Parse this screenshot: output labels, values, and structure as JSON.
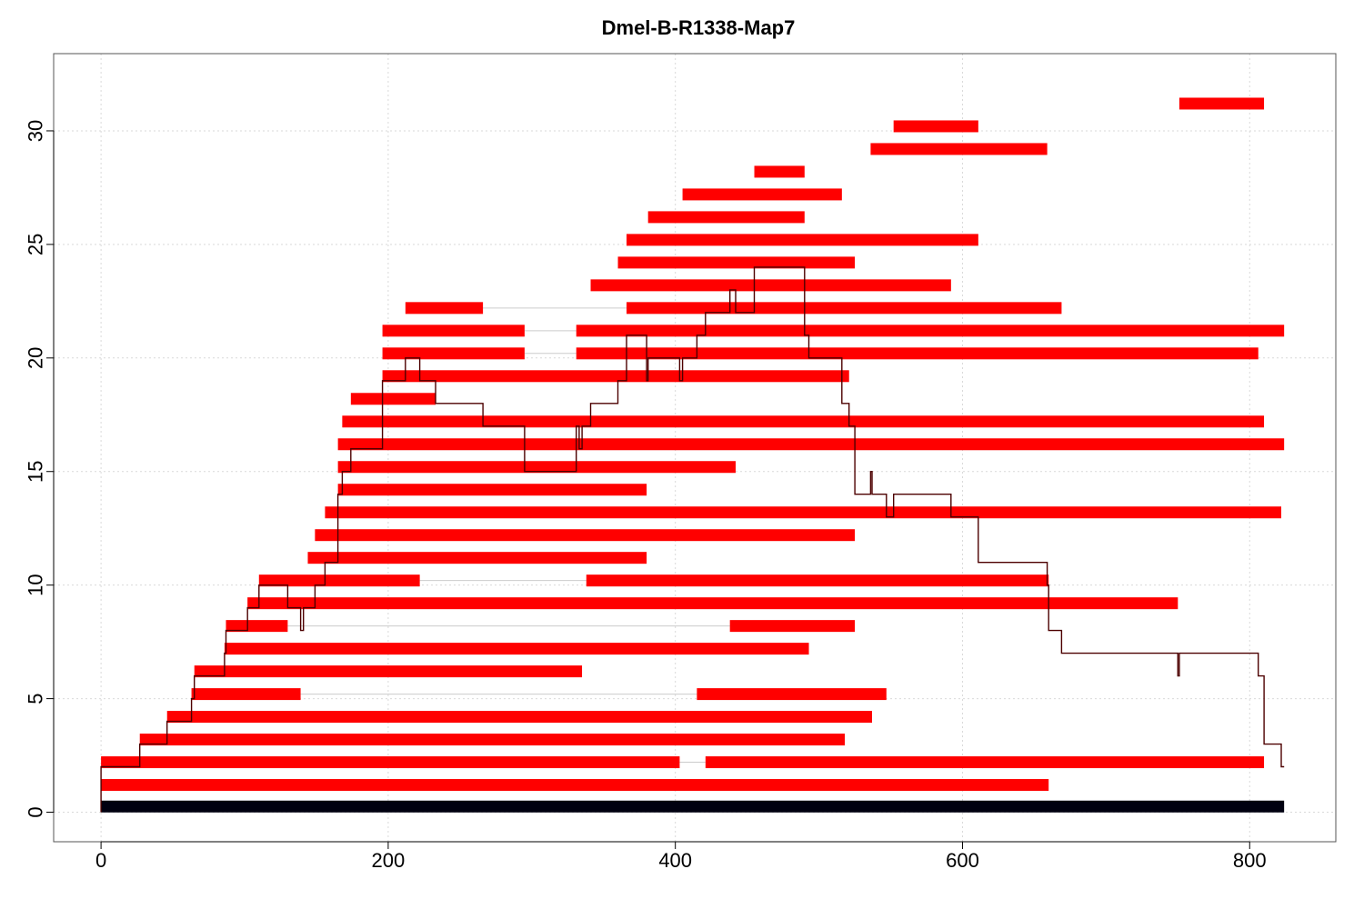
{
  "chart_data": {
    "type": "bar",
    "title": "Dmel-B-R1338-Map7",
    "xlabel": "",
    "ylabel": "",
    "xlim": [
      -33,
      860
    ],
    "ylim": [
      -1.3,
      33.4
    ],
    "x_ticks": [
      0,
      200,
      400,
      600,
      800
    ],
    "y_ticks": [
      0,
      5,
      10,
      15,
      20,
      25,
      30
    ],
    "grid": true,
    "colors": {
      "segment": "#ff0000",
      "reference": "#000010",
      "coverage": "#4d0000",
      "connector": "#cccccc",
      "grid": "#d9d9d9"
    },
    "reference": {
      "y": 0.25,
      "start": 0,
      "end": 824
    },
    "rows": [
      {
        "y": 1.2,
        "segments": [
          [
            0,
            660
          ]
        ]
      },
      {
        "y": 2.2,
        "segments": [
          [
            0,
            403
          ],
          [
            421,
            810
          ]
        ]
      },
      {
        "y": 3.2,
        "segments": [
          [
            27,
            518
          ]
        ]
      },
      {
        "y": 4.2,
        "segments": [
          [
            46,
            537
          ]
        ]
      },
      {
        "y": 5.2,
        "segments": [
          [
            63,
            139
          ],
          [
            415,
            547
          ]
        ]
      },
      {
        "y": 6.2,
        "segments": [
          [
            65,
            335
          ]
        ]
      },
      {
        "y": 7.2,
        "segments": [
          [
            86,
            493
          ]
        ]
      },
      {
        "y": 8.2,
        "segments": [
          [
            87,
            130
          ],
          [
            438,
            525
          ]
        ]
      },
      {
        "y": 9.2,
        "segments": [
          [
            102,
            750
          ]
        ]
      },
      {
        "y": 10.2,
        "segments": [
          [
            110,
            222
          ],
          [
            338,
            660
          ]
        ]
      },
      {
        "y": 11.2,
        "segments": [
          [
            144,
            380
          ]
        ]
      },
      {
        "y": 12.2,
        "segments": [
          [
            149,
            525
          ]
        ]
      },
      {
        "y": 13.2,
        "segments": [
          [
            156,
            822
          ]
        ]
      },
      {
        "y": 14.2,
        "segments": [
          [
            165,
            380
          ]
        ]
      },
      {
        "y": 15.2,
        "segments": [
          [
            165,
            442
          ]
        ]
      },
      {
        "y": 16.2,
        "segments": [
          [
            165,
            824
          ]
        ]
      },
      {
        "y": 17.2,
        "segments": [
          [
            168,
            810
          ]
        ]
      },
      {
        "y": 18.2,
        "segments": [
          [
            174,
            233
          ]
        ]
      },
      {
        "y": 19.2,
        "segments": [
          [
            196,
            521
          ]
        ]
      },
      {
        "y": 20.2,
        "segments": [
          [
            196,
            295
          ],
          [
            331,
            806
          ]
        ]
      },
      {
        "y": 21.2,
        "segments": [
          [
            196,
            295
          ],
          [
            331,
            824
          ]
        ]
      },
      {
        "y": 22.2,
        "segments": [
          [
            212,
            266
          ],
          [
            366,
            669
          ]
        ]
      },
      {
        "y": 23.2,
        "segments": [
          [
            341,
            592
          ]
        ]
      },
      {
        "y": 24.2,
        "segments": [
          [
            360,
            525
          ]
        ]
      },
      {
        "y": 25.2,
        "segments": [
          [
            366,
            611
          ]
        ]
      },
      {
        "y": 26.2,
        "segments": [
          [
            381,
            490
          ]
        ]
      },
      {
        "y": 27.2,
        "segments": [
          [
            405,
            516
          ]
        ]
      },
      {
        "y": 28.2,
        "segments": [
          [
            455,
            490
          ]
        ]
      },
      {
        "y": 29.2,
        "segments": [
          [
            536,
            659
          ]
        ]
      },
      {
        "y": 30.2,
        "segments": [
          [
            552,
            611
          ]
        ]
      },
      {
        "y": 31.2,
        "segments": [
          [
            751,
            810
          ]
        ]
      }
    ],
    "coverage": [
      [
        0,
        0
      ],
      [
        0,
        2
      ],
      [
        27,
        2
      ],
      [
        27,
        3
      ],
      [
        46,
        3
      ],
      [
        46,
        4
      ],
      [
        63,
        4
      ],
      [
        63,
        5
      ],
      [
        65,
        5
      ],
      [
        65,
        6
      ],
      [
        86,
        6
      ],
      [
        86,
        7
      ],
      [
        87,
        7
      ],
      [
        87,
        8
      ],
      [
        102,
        8
      ],
      [
        102,
        9
      ],
      [
        110,
        9
      ],
      [
        110,
        10
      ],
      [
        130,
        10
      ],
      [
        130,
        9
      ],
      [
        139,
        9
      ],
      [
        139,
        8
      ],
      [
        141,
        8
      ],
      [
        141,
        9
      ],
      [
        149,
        9
      ],
      [
        149,
        10
      ],
      [
        156,
        10
      ],
      [
        156,
        11
      ],
      [
        165,
        11
      ],
      [
        165,
        14
      ],
      [
        168,
        14
      ],
      [
        168,
        15
      ],
      [
        174,
        15
      ],
      [
        174,
        16
      ],
      [
        196,
        16
      ],
      [
        196,
        19
      ],
      [
        212,
        19
      ],
      [
        212,
        20
      ],
      [
        222,
        20
      ],
      [
        222,
        19
      ],
      [
        233,
        19
      ],
      [
        233,
        18
      ],
      [
        266,
        18
      ],
      [
        266,
        17
      ],
      [
        295,
        17
      ],
      [
        295,
        15
      ],
      [
        331,
        15
      ],
      [
        331,
        17
      ],
      [
        333,
        17
      ],
      [
        333,
        16
      ],
      [
        335,
        16
      ],
      [
        335,
        17
      ],
      [
        341,
        17
      ],
      [
        341,
        18
      ],
      [
        360,
        18
      ],
      [
        360,
        19
      ],
      [
        366,
        19
      ],
      [
        366,
        21
      ],
      [
        380,
        21
      ],
      [
        380,
        19
      ],
      [
        381,
        19
      ],
      [
        381,
        20
      ],
      [
        403,
        20
      ],
      [
        403,
        19
      ],
      [
        405,
        19
      ],
      [
        405,
        20
      ],
      [
        415,
        20
      ],
      [
        415,
        21
      ],
      [
        421,
        21
      ],
      [
        421,
        22
      ],
      [
        438,
        22
      ],
      [
        438,
        23
      ],
      [
        442,
        23
      ],
      [
        442,
        22
      ],
      [
        455,
        22
      ],
      [
        455,
        24
      ],
      [
        490,
        24
      ],
      [
        490,
        21
      ],
      [
        493,
        21
      ],
      [
        493,
        20
      ],
      [
        516,
        20
      ],
      [
        516,
        18
      ],
      [
        521,
        18
      ],
      [
        521,
        17
      ],
      [
        525,
        17
      ],
      [
        525,
        14
      ],
      [
        536,
        14
      ],
      [
        536,
        15
      ],
      [
        537,
        15
      ],
      [
        537,
        14
      ],
      [
        547,
        14
      ],
      [
        547,
        13
      ],
      [
        552,
        13
      ],
      [
        552,
        14
      ],
      [
        592,
        14
      ],
      [
        592,
        13
      ],
      [
        611,
        13
      ],
      [
        611,
        11
      ],
      [
        659,
        11
      ],
      [
        659,
        10
      ],
      [
        660,
        10
      ],
      [
        660,
        8
      ],
      [
        669,
        8
      ],
      [
        669,
        7
      ],
      [
        750,
        7
      ],
      [
        750,
        6
      ],
      [
        751,
        6
      ],
      [
        751,
        7
      ],
      [
        806,
        7
      ],
      [
        806,
        6
      ],
      [
        810,
        6
      ],
      [
        810,
        3
      ],
      [
        822,
        3
      ],
      [
        822,
        2
      ],
      [
        824,
        2
      ]
    ]
  }
}
